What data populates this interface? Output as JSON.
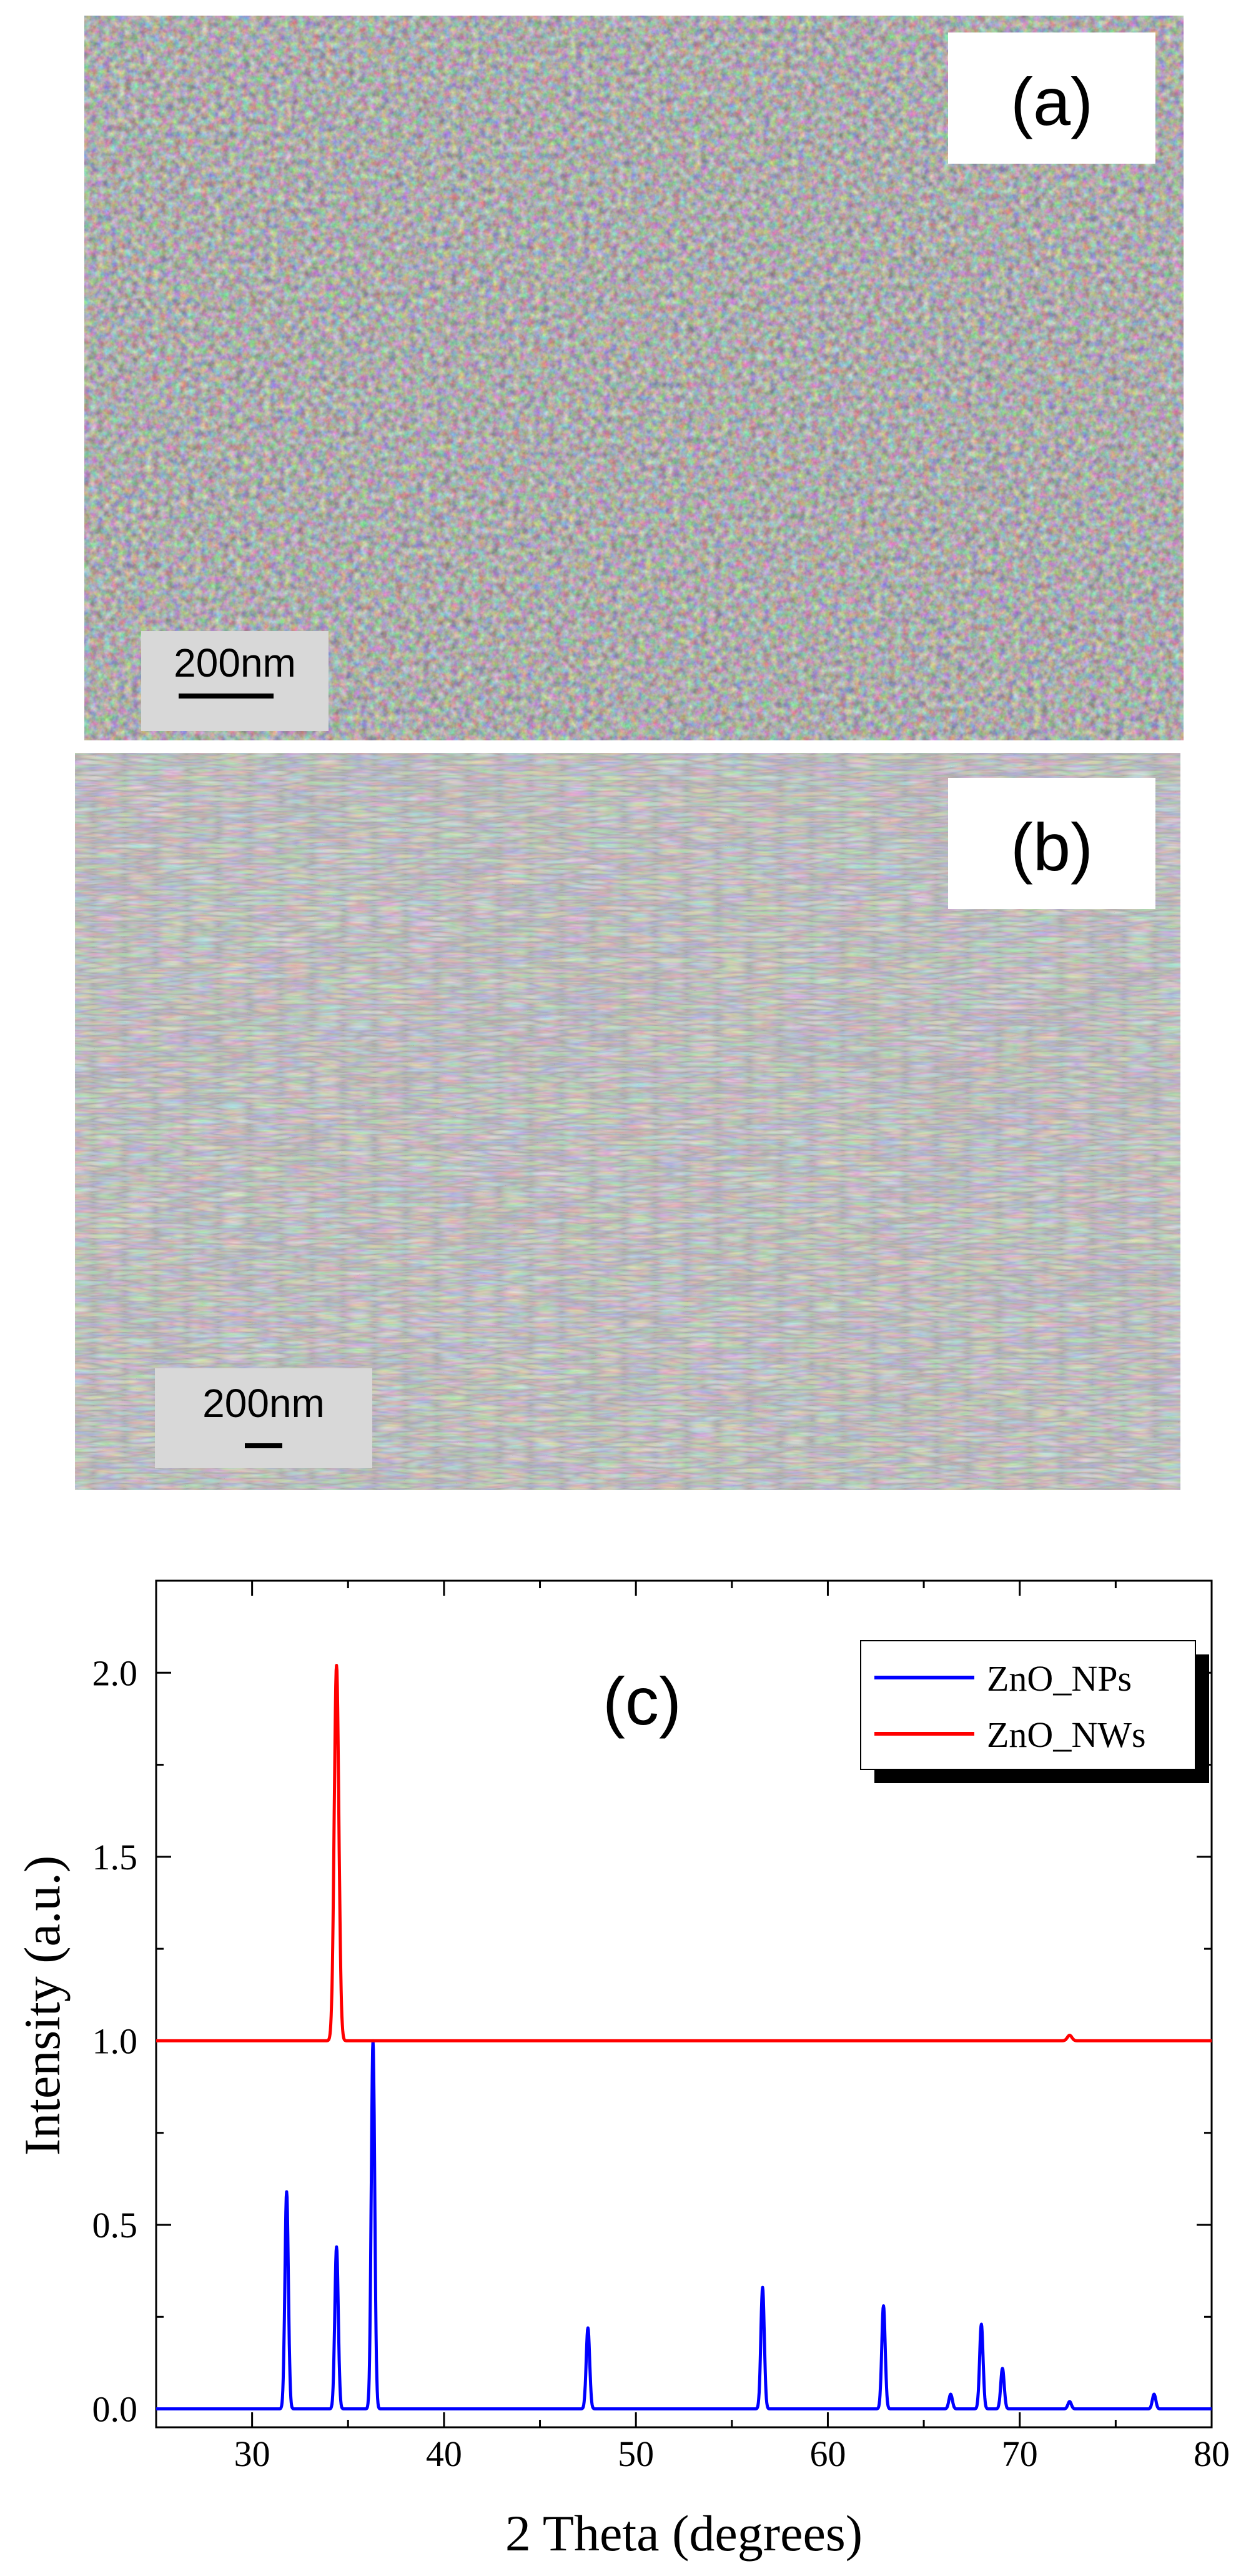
{
  "panels": {
    "a": {
      "label": "(a)",
      "scalebar": "200nm"
    },
    "b": {
      "label": "(b)",
      "scalebar": "200nm"
    }
  },
  "chart_data": {
    "type": "line",
    "panel_label": "(c)",
    "xlabel": "2 Theta (degrees)",
    "ylabel": "Intensity (a.u.)",
    "xlim": [
      25,
      80
    ],
    "ylim": [
      -0.05,
      2.25
    ],
    "x_ticks": [
      30,
      40,
      50,
      60,
      70,
      80
    ],
    "y_ticks": [
      0.0,
      0.5,
      1.0,
      1.5,
      2.0
    ],
    "x_tick_labels": [
      "30",
      "40",
      "50",
      "60",
      "70",
      "80"
    ],
    "y_tick_labels": [
      "0.0",
      "0.5",
      "1.0",
      "1.5",
      "2.0"
    ],
    "legend_position": "top-right",
    "grid": false,
    "series": [
      {
        "name": "ZnO_NPs",
        "color": "#0000ff",
        "baseline": 0.0,
        "peak_width": 0.09,
        "peaks": [
          {
            "x": 31.8,
            "y": 0.59
          },
          {
            "x": 34.4,
            "y": 0.44
          },
          {
            "x": 36.3,
            "y": 1.0
          },
          {
            "x": 47.5,
            "y": 0.22
          },
          {
            "x": 56.6,
            "y": 0.33
          },
          {
            "x": 62.9,
            "y": 0.28
          },
          {
            "x": 66.4,
            "y": 0.04
          },
          {
            "x": 68.0,
            "y": 0.23
          },
          {
            "x": 69.1,
            "y": 0.11
          },
          {
            "x": 72.6,
            "y": 0.02
          },
          {
            "x": 77.0,
            "y": 0.04
          }
        ]
      },
      {
        "name": "ZnO_NWs",
        "color": "#ff0000",
        "baseline": 1.0,
        "peak_width": 0.12,
        "peaks": [
          {
            "x": 34.4,
            "y": 2.02
          },
          {
            "x": 72.6,
            "y": 1.015
          }
        ]
      }
    ]
  }
}
